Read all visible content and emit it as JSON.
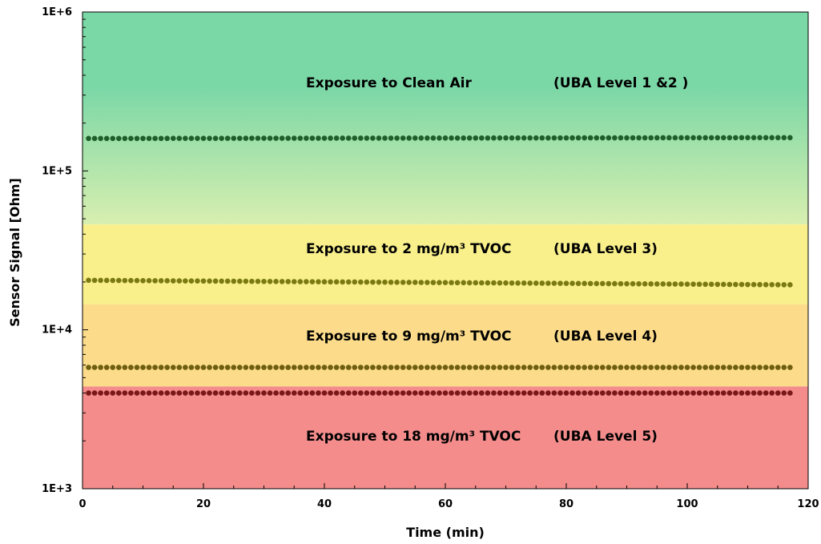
{
  "chart_data": {
    "type": "scatter",
    "title": "",
    "xlabel": "Time (min)",
    "ylabel": "Sensor Signal [Ohm]",
    "xlim": [
      0,
      120
    ],
    "ylim": [
      1000,
      1000000
    ],
    "y_scale": "log",
    "x_ticks": [
      "0",
      "20",
      "40",
      "60",
      "80",
      "100",
      "120"
    ],
    "y_ticks": [
      "1E+3",
      "1E+4",
      "1E+5",
      "1E+6"
    ],
    "grid": false,
    "colors": {
      "zone_clean_top": "#7ad7a6",
      "zone_clean_bottom": "#d8efb0",
      "zone_level3": "#f9f08c",
      "zone_level4": "#fcdc8a",
      "zone_level5": "#f48c8c"
    },
    "zones": [
      {
        "name": "clean-air",
        "ymin": 46000,
        "ymax": 1000000,
        "label": "Exposure to Clean Air",
        "level": "(UBA Level 1 &2 )"
      },
      {
        "name": "level3",
        "ymin": 14500,
        "ymax": 46000,
        "label": "Exposure to 2 mg/m³ TVOC",
        "level": "(UBA Level 3)"
      },
      {
        "name": "level4",
        "ymin": 4400,
        "ymax": 14500,
        "label": "Exposure to 9 mg/m³ TVOC",
        "level": "(UBA Level 4)"
      },
      {
        "name": "level5",
        "ymin": 1000,
        "ymax": 4400,
        "label": "Exposure to 18 mg/m³ TVOC",
        "level": "(UBA Level 5)"
      }
    ],
    "series": [
      {
        "color": "#1e5e2a",
        "x_start": 1,
        "x_end": 117,
        "count": 117,
        "y_start": 160000,
        "y_end": 162000
      },
      {
        "color": "#7a7a10",
        "x_start": 1,
        "x_end": 117,
        "count": 117,
        "y_start": 20500,
        "y_end": 19200
      },
      {
        "color": "#6e5e10",
        "x_start": 1,
        "x_end": 117,
        "count": 117,
        "y_start": 5800,
        "y_end": 5800
      },
      {
        "color": "#7a1818",
        "x_start": 1,
        "x_end": 117,
        "count": 117,
        "y_start": 4000,
        "y_end": 4000
      }
    ]
  }
}
